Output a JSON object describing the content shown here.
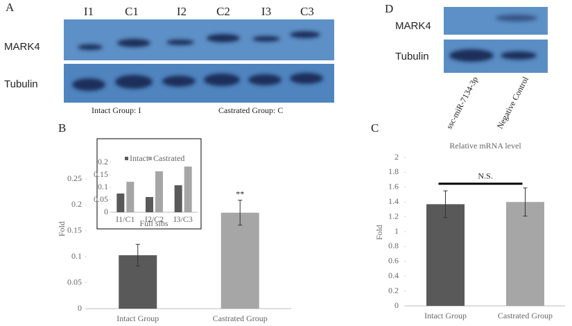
{
  "panels": {
    "a": "A",
    "b": "B",
    "c": "C",
    "d": "D"
  },
  "blot_a": {
    "lanes": [
      "I1",
      "C1",
      "I2",
      "C2",
      "I3",
      "C3"
    ],
    "rows": [
      "MARK4",
      "Tubulin"
    ],
    "legend": [
      "Intact Group: I",
      "Castrated Group: C"
    ]
  },
  "blot_d": {
    "lanes": [
      "ssc-miR-7134-3p",
      "Negative Control"
    ],
    "rows": [
      "MARK4",
      "Tubulin"
    ]
  },
  "chart_data": [
    {
      "type": "bar",
      "y_label": "Fold",
      "categories": [
        "Intact Group",
        "Castrated Group"
      ],
      "values": [
        0.103,
        0.185
      ],
      "errors": [
        0.021,
        0.024
      ],
      "colors": [
        "#595959",
        "#a6a6a6"
      ],
      "ylim": [
        0,
        0.25
      ],
      "yticks": [
        0,
        0.05,
        0.1,
        0.15,
        0.2,
        0.25
      ],
      "annotation": "**"
    },
    {
      "type": "bar",
      "x_label": "Full sibs",
      "categories": [
        "I1/C1",
        "I2/C2",
        "I3/C3"
      ],
      "series": [
        {
          "name": "Intact",
          "color": "#595959",
          "values": [
            0.075,
            0.061,
            0.108
          ]
        },
        {
          "name": "Castrated",
          "color": "#a6a6a6",
          "values": [
            0.122,
            0.164,
            0.183
          ]
        }
      ],
      "ylim": [
        0,
        0.2
      ],
      "yticks": [
        0,
        0.05,
        0.1,
        0.15,
        0.2
      ]
    },
    {
      "type": "bar",
      "title": "Relative mRNA level",
      "y_label": "Fold",
      "categories": [
        "Intact Group",
        "Castrated Group"
      ],
      "values": [
        1.37,
        1.4
      ],
      "errors": [
        0.18,
        0.19
      ],
      "colors": [
        "#595959",
        "#a6a6a6"
      ],
      "ylim": [
        0,
        2
      ],
      "yticks": [
        0,
        0.2,
        0.4,
        0.6,
        0.8,
        1,
        1.2,
        1.4,
        1.6,
        1.8,
        2
      ],
      "annotation": "N.S."
    }
  ]
}
